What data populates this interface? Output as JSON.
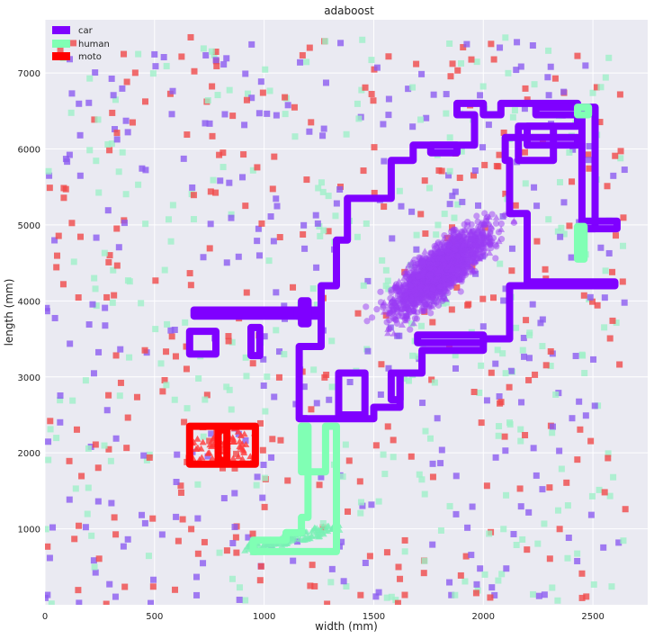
{
  "chart_data": {
    "type": "scatter",
    "title": "adaboost",
    "xlabel": "width (mm)",
    "ylabel": "length (mm)",
    "xlim": [
      0,
      2750
    ],
    "ylim": [
      0,
      7700
    ],
    "xticks": [
      0,
      500,
      1000,
      1500,
      2000,
      2500
    ],
    "yticks": [
      1000,
      2000,
      3000,
      4000,
      5000,
      6000,
      7000
    ],
    "grid": true,
    "legend_position": "top-left",
    "legend": [
      {
        "label": "car",
        "color": "#7f00ff"
      },
      {
        "label": "human",
        "color": "#80ffb4"
      },
      {
        "label": "moto",
        "color": "#ff0000"
      }
    ],
    "noise_squares": {
      "marker": "square",
      "colors": [
        "#8c5cf0",
        "#9ff0c8",
        "#f04a4a"
      ],
      "approx_count": 900,
      "x_range": [
        0,
        2650
      ],
      "y_range": [
        0,
        7500
      ]
    },
    "car_points": {
      "marker": "circle+triangle",
      "color": "#9a3cf4",
      "approx_count": 1700,
      "center": [
        1800,
        4400
      ],
      "spread_along_diagonal": "x 1300-2100, y 2800-6500"
    },
    "human_points": {
      "marker": "triangle",
      "color": "#78f0b4",
      "approx_count": 120,
      "x_range": [
        900,
        1350
      ],
      "y_range": [
        650,
        1100
      ]
    },
    "moto_points": {
      "marker": "triangle",
      "color": "#ff3a3a",
      "approx_count": 60,
      "x_range": [
        660,
        960
      ],
      "y_range": [
        1900,
        2350
      ]
    },
    "decision_boundaries": [
      {
        "series": "car",
        "color": "#7f00ff",
        "points": [
          [
            1160,
            2450
          ],
          [
            1160,
            3400
          ],
          [
            1260,
            3400
          ],
          [
            1260,
            4200
          ],
          [
            1330,
            4200
          ],
          [
            1330,
            4800
          ],
          [
            1380,
            4800
          ],
          [
            1380,
            5350
          ],
          [
            1580,
            5350
          ],
          [
            1580,
            5850
          ],
          [
            1680,
            5850
          ],
          [
            1680,
            6050
          ],
          [
            1960,
            6050
          ],
          [
            1960,
            6450
          ],
          [
            1880,
            6450
          ],
          [
            1880,
            6600
          ],
          [
            2000,
            6600
          ],
          [
            2000,
            6450
          ],
          [
            2080,
            6450
          ],
          [
            2080,
            6600
          ],
          [
            2430,
            6600
          ],
          [
            2430,
            6300
          ],
          [
            2200,
            6300
          ],
          [
            2200,
            6150
          ],
          [
            2100,
            6150
          ],
          [
            2100,
            5850
          ],
          [
            2120,
            5850
          ],
          [
            2120,
            5150
          ],
          [
            2200,
            5150
          ],
          [
            2200,
            4250
          ],
          [
            2600,
            4250
          ],
          [
            2600,
            4200
          ],
          [
            2120,
            4200
          ],
          [
            2120,
            3500
          ],
          [
            2000,
            3500
          ],
          [
            2000,
            3350
          ],
          [
            1720,
            3350
          ],
          [
            1720,
            3050
          ],
          [
            1620,
            3050
          ],
          [
            1620,
            2600
          ],
          [
            1500,
            2600
          ],
          [
            1500,
            2450
          ],
          [
            1160,
            2450
          ]
        ]
      },
      {
        "series": "car",
        "color": "#7f00ff",
        "points": [
          [
            1340,
            2500
          ],
          [
            1340,
            3050
          ],
          [
            1460,
            3050
          ],
          [
            1460,
            2500
          ],
          [
            1340,
            2500
          ]
        ]
      },
      {
        "series": "car",
        "color": "#7f00ff",
        "points": [
          [
            1580,
            2700
          ],
          [
            1580,
            3050
          ],
          [
            1620,
            3050
          ],
          [
            1620,
            2700
          ],
          [
            1580,
            2700
          ]
        ]
      },
      {
        "series": "car",
        "color": "#7f00ff",
        "points": [
          [
            1700,
            3450
          ],
          [
            1700,
            3550
          ],
          [
            2000,
            3550
          ],
          [
            2000,
            3450
          ],
          [
            1700,
            3450
          ]
        ]
      },
      {
        "series": "car",
        "color": "#7f00ff",
        "points": [
          [
            2160,
            5850
          ],
          [
            2160,
            6300
          ],
          [
            2320,
            6300
          ],
          [
            2320,
            5850
          ],
          [
            2160,
            5850
          ]
        ]
      },
      {
        "series": "car",
        "color": "#7f00ff",
        "points": [
          [
            2200,
            6050
          ],
          [
            2200,
            6150
          ],
          [
            2430,
            6150
          ],
          [
            2430,
            6050
          ],
          [
            2200,
            6050
          ]
        ]
      },
      {
        "series": "car",
        "color": "#7f00ff",
        "points": [
          [
            2240,
            6450
          ],
          [
            2240,
            6550
          ],
          [
            2430,
            6550
          ],
          [
            2430,
            6450
          ],
          [
            2240,
            6450
          ]
        ]
      },
      {
        "series": "car",
        "color": "#7f00ff",
        "points": [
          [
            2450,
            4950
          ],
          [
            2450,
            6550
          ],
          [
            2510,
            6550
          ],
          [
            2510,
            4950
          ],
          [
            2450,
            4950
          ]
        ]
      },
      {
        "series": "car",
        "color": "#7f00ff",
        "points": [
          [
            2450,
            4950
          ],
          [
            2610,
            4950
          ],
          [
            2610,
            5050
          ],
          [
            2450,
            5050
          ],
          [
            2450,
            4950
          ]
        ]
      },
      {
        "series": "car",
        "color": "#7f00ff",
        "points": [
          [
            1760,
            5950
          ],
          [
            1760,
            6050
          ],
          [
            1880,
            6050
          ],
          [
            1880,
            5950
          ],
          [
            1760,
            5950
          ]
        ]
      },
      {
        "series": "car",
        "color": "#7f00ff",
        "points": [
          [
            680,
            3800
          ],
          [
            680,
            3880
          ],
          [
            1200,
            3880
          ],
          [
            1200,
            3800
          ],
          [
            680,
            3800
          ]
        ]
      },
      {
        "series": "car",
        "color": "#7f00ff",
        "points": [
          [
            1150,
            3800
          ],
          [
            1150,
            3880
          ],
          [
            1260,
            3880
          ],
          [
            1260,
            3800
          ],
          [
            1150,
            3800
          ]
        ]
      },
      {
        "series": "car",
        "color": "#7f00ff",
        "points": [
          [
            660,
            3300
          ],
          [
            660,
            3600
          ],
          [
            780,
            3600
          ],
          [
            780,
            3300
          ],
          [
            660,
            3300
          ]
        ]
      },
      {
        "series": "car",
        "color": "#7f00ff",
        "points": [
          [
            940,
            3280
          ],
          [
            940,
            3650
          ],
          [
            980,
            3650
          ],
          [
            980,
            3280
          ],
          [
            940,
            3280
          ]
        ]
      },
      {
        "series": "car",
        "color": "#7f00ff",
        "points": [
          [
            1170,
            3700
          ],
          [
            1170,
            4000
          ],
          [
            1200,
            4000
          ],
          [
            1200,
            3700
          ],
          [
            1170,
            3700
          ]
        ]
      },
      {
        "series": "human",
        "color": "#80ffb4",
        "points": [
          [
            1170,
            2350
          ],
          [
            1170,
            1750
          ],
          [
            1280,
            1750
          ],
          [
            1280,
            2350
          ],
          [
            1330,
            2350
          ],
          [
            1330,
            700
          ],
          [
            950,
            700
          ],
          [
            950,
            850
          ],
          [
            1100,
            850
          ],
          [
            1100,
            950
          ],
          [
            1170,
            950
          ],
          [
            1170,
            1150
          ],
          [
            1200,
            1150
          ],
          [
            1200,
            2350
          ],
          [
            1170,
            2350
          ]
        ]
      },
      {
        "series": "human",
        "color": "#80ffb4",
        "points": [
          [
            2430,
            4550
          ],
          [
            2430,
            4980
          ],
          [
            2460,
            4980
          ],
          [
            2460,
            4550
          ],
          [
            2430,
            4550
          ]
        ]
      },
      {
        "series": "human",
        "color": "#80ffb4",
        "points": [
          [
            2430,
            6450
          ],
          [
            2430,
            6550
          ],
          [
            2480,
            6550
          ],
          [
            2480,
            6450
          ],
          [
            2430,
            6450
          ]
        ]
      },
      {
        "series": "moto",
        "color": "#ff0000",
        "points": [
          [
            660,
            1850
          ],
          [
            660,
            2350
          ],
          [
            960,
            2350
          ],
          [
            960,
            1850
          ],
          [
            660,
            1850
          ]
        ]
      },
      {
        "series": "moto",
        "color": "#ff0000",
        "points": [
          [
            790,
            1900
          ],
          [
            790,
            2300
          ],
          [
            830,
            2300
          ],
          [
            830,
            1900
          ],
          [
            790,
            1900
          ]
        ]
      }
    ]
  }
}
